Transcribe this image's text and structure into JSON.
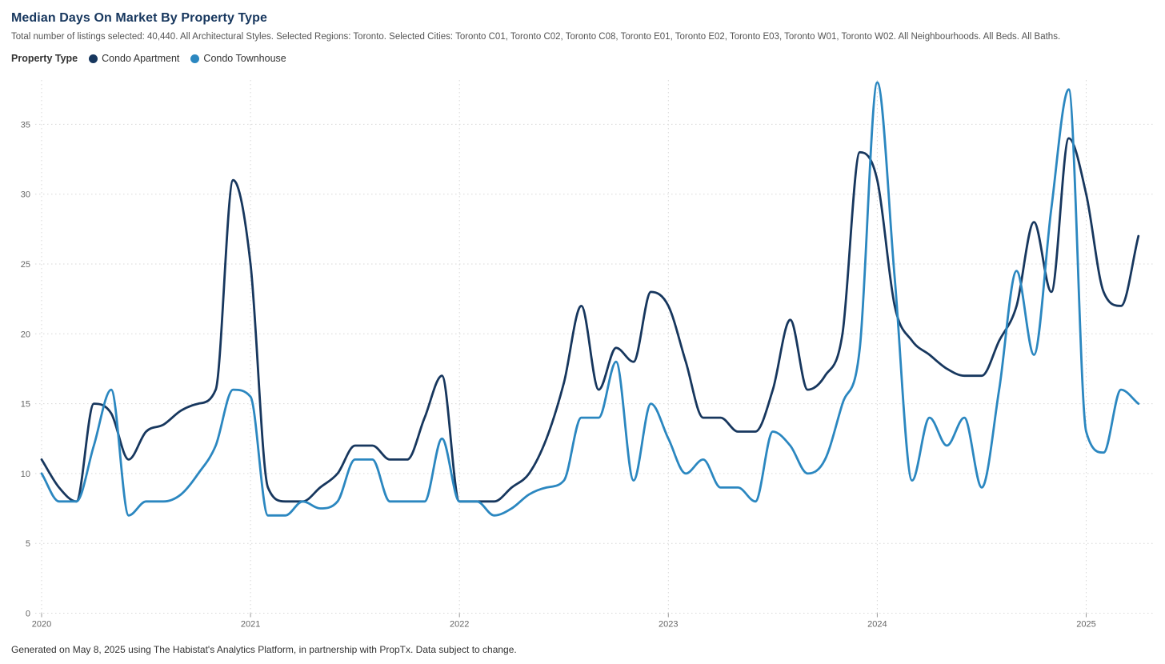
{
  "header": {
    "title": "Median Days On Market By Property Type",
    "subtitle": "Total number of listings selected: 40,440. All Architectural Styles. Selected Regions: Toronto. Selected Cities: Toronto C01, Toronto C02, Toronto C08, Toronto E01, Toronto E02, Toronto E03, Toronto W01, Toronto W02. All Neighbourhoods. All Beds. All Baths."
  },
  "legend": {
    "label": "Property Type",
    "items": [
      {
        "label": "Condo Apartment",
        "color": "#17375E"
      },
      {
        "label": "Condo Townhouse",
        "color": "#2B87C0"
      }
    ]
  },
  "chart_data": {
    "type": "line",
    "title": "Median Days On Market By Property Type",
    "xlabel": "",
    "ylabel": "",
    "ylim": [
      0,
      38.5
    ],
    "y_ticks": [
      0,
      5,
      10,
      15,
      20,
      25,
      30,
      35
    ],
    "x_tick_labels": [
      "2020",
      "2021",
      "2022",
      "2023",
      "2024",
      "2025"
    ],
    "grid": "dotted",
    "grid_color": "#d8d8d8",
    "legend_position": "top",
    "x": [
      "2020-01",
      "2020-02",
      "2020-03",
      "2020-04",
      "2020-05",
      "2020-06",
      "2020-07",
      "2020-08",
      "2020-09",
      "2020-10",
      "2020-11",
      "2020-12",
      "2021-01",
      "2021-02",
      "2021-03",
      "2021-04",
      "2021-05",
      "2021-06",
      "2021-07",
      "2021-08",
      "2021-09",
      "2021-10",
      "2021-11",
      "2021-12",
      "2022-01",
      "2022-02",
      "2022-03",
      "2022-04",
      "2022-05",
      "2022-06",
      "2022-07",
      "2022-08",
      "2022-09",
      "2022-10",
      "2022-11",
      "2022-12",
      "2023-01",
      "2023-02",
      "2023-03",
      "2023-04",
      "2023-05",
      "2023-06",
      "2023-07",
      "2023-08",
      "2023-09",
      "2023-10",
      "2023-11",
      "2023-12",
      "2024-01",
      "2024-02",
      "2024-03",
      "2024-04",
      "2024-05",
      "2024-06",
      "2024-07",
      "2024-08",
      "2024-09",
      "2024-10",
      "2024-11",
      "2024-12",
      "2025-01",
      "2025-02",
      "2025-03",
      "2025-04"
    ],
    "series": [
      {
        "name": "Condo Apartment",
        "color": "#17375E",
        "values": [
          11,
          9,
          8,
          15,
          14.3,
          11,
          13,
          13.5,
          14.5,
          15,
          16,
          31,
          25,
          9,
          8,
          8,
          9,
          10,
          12,
          12,
          11,
          11,
          14,
          17,
          8,
          8,
          8,
          9,
          10,
          12.5,
          16.5,
          22,
          16,
          19,
          18,
          23,
          22,
          18,
          14,
          14,
          13,
          13,
          16,
          21,
          16,
          17,
          20,
          33,
          31,
          22,
          19.5,
          18.5,
          17.5,
          17,
          17,
          19.5,
          22,
          28,
          23,
          34,
          30,
          23,
          22,
          27
        ]
      },
      {
        "name": "Condo Townhouse",
        "color": "#2B87C0",
        "values": [
          10,
          8,
          8,
          12,
          16,
          7,
          8,
          8,
          8.5,
          10,
          12,
          16,
          15.5,
          7,
          7,
          8,
          7.5,
          8,
          11,
          11,
          8,
          8,
          8,
          12.5,
          8,
          8,
          7,
          7.5,
          8.5,
          9,
          9.5,
          14,
          14,
          18,
          9.5,
          15,
          12.5,
          10,
          11,
          9,
          9,
          8,
          13,
          12,
          10,
          11,
          15,
          19,
          38,
          24,
          9.5,
          14,
          12,
          14,
          9,
          16,
          24.5,
          18.5,
          29,
          37.5,
          13,
          11.5,
          16,
          15
        ]
      }
    ]
  },
  "footer": {
    "note": "Generated on May 8, 2025 using The Habistat's Analytics Platform, in partnership with PropTx. Data subject to change."
  }
}
